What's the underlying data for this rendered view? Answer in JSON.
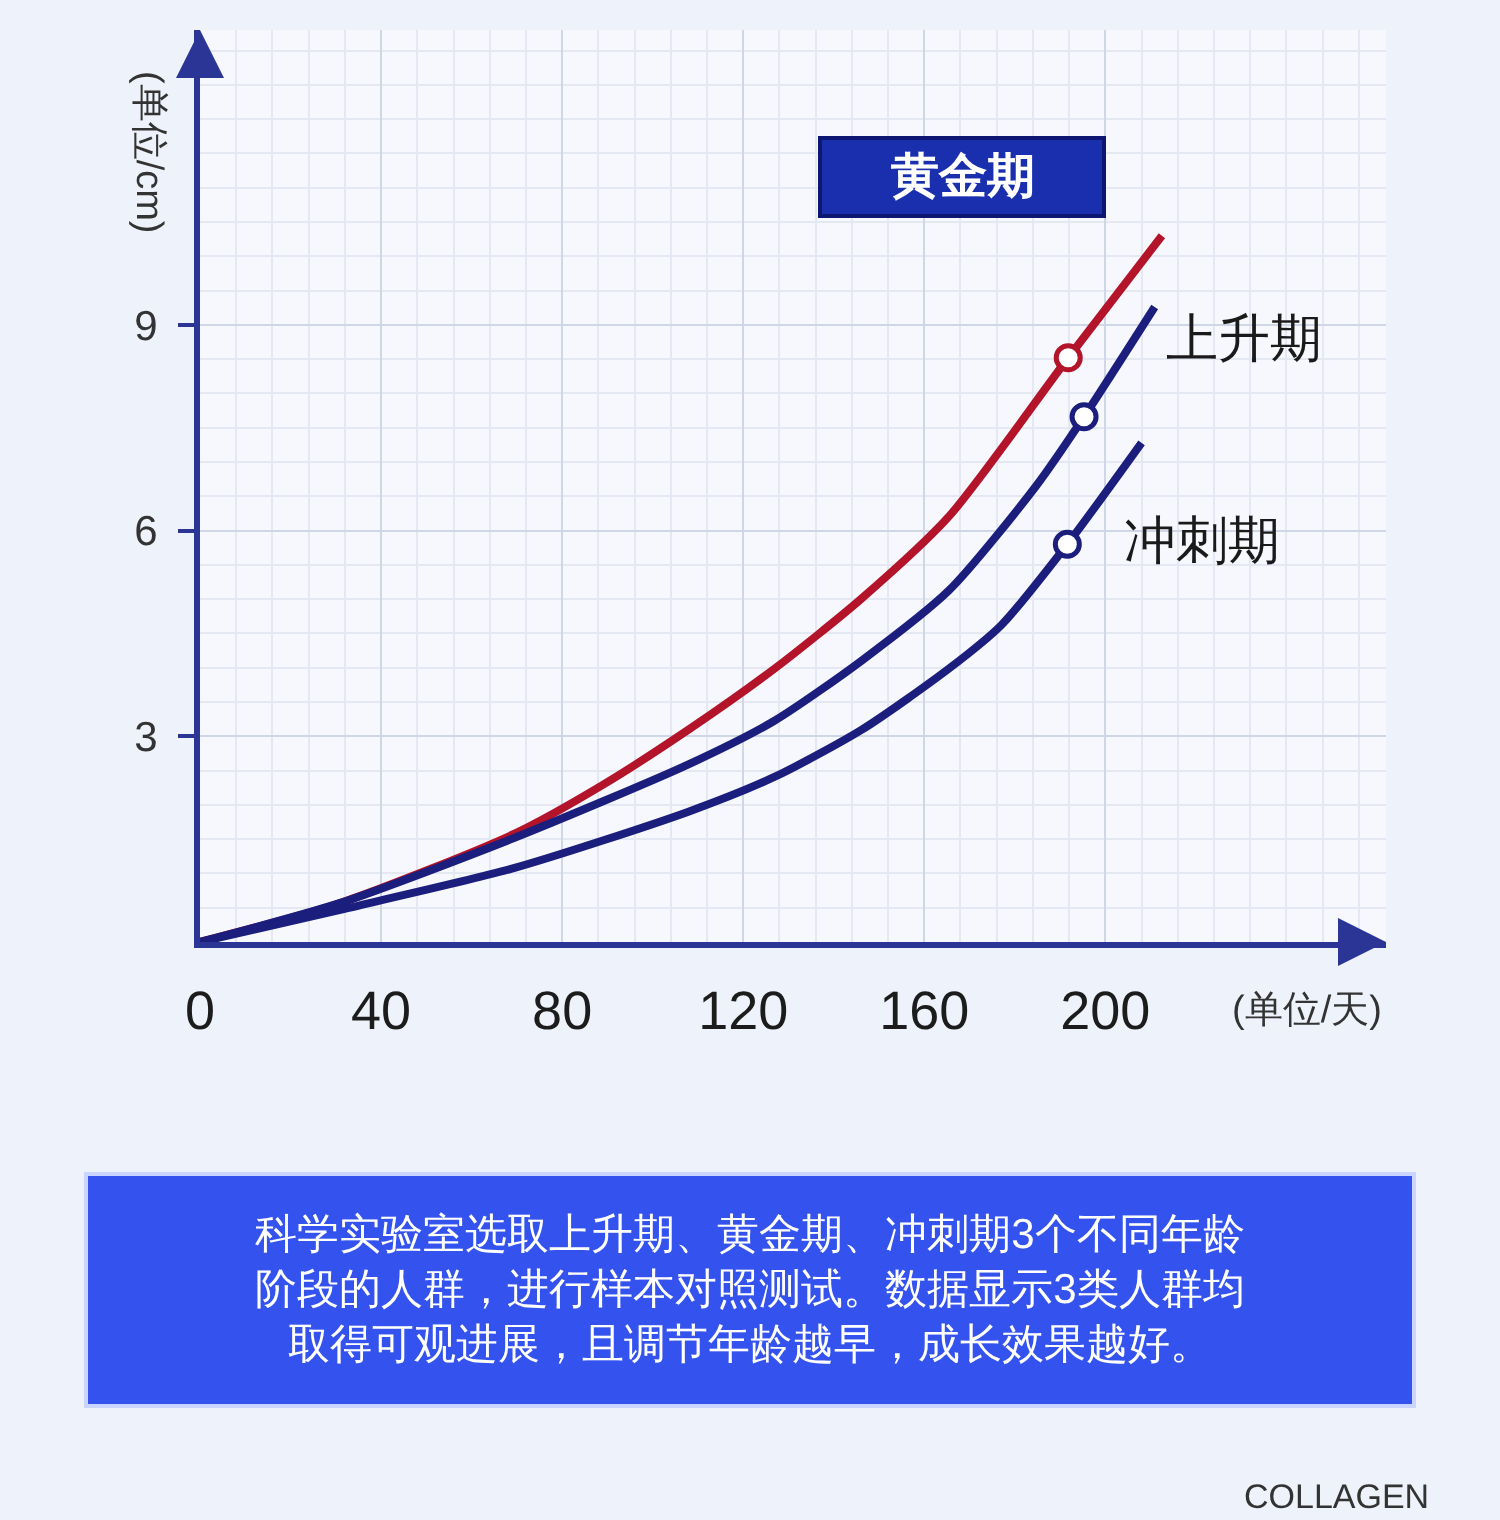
{
  "chart_data": {
    "type": "line",
    "xlabel": "(单位/天)",
    "ylabel": "(单位/cm)",
    "xlim": [
      0,
      262
    ],
    "ylim": [
      0,
      13.3
    ],
    "xticks": [
      0,
      40,
      80,
      120,
      160,
      200
    ],
    "yticks": [
      3,
      6,
      9
    ],
    "grid": true,
    "legend": false,
    "line_style": "solid",
    "series": [
      {
        "name": "黄金期",
        "color": "#b3142a",
        "x": [
          0,
          31,
          69.5,
          88.7,
          108,
          127,
          146,
          165.5,
          191.8,
          212.5
        ],
        "values": [
          0,
          0.57,
          1.58,
          2.28,
          3.1,
          3.99,
          5.0,
          6.21,
          8.52,
          10.3
        ]
      },
      {
        "name": "上升期",
        "color": "#1b1e7c",
        "x": [
          0,
          31,
          69.5,
          107.9,
          127,
          146.3,
          165.5,
          184.7,
          195.3,
          210.9
        ],
        "values": [
          0,
          0.57,
          1.52,
          2.59,
          3.23,
          4.11,
          5.13,
          6.65,
          7.66,
          9.26
        ]
      },
      {
        "name": "冲刺期",
        "color": "#1b1e7c",
        "x": [
          0,
          31,
          69.5,
          107.9,
          127,
          146.3,
          165.5,
          177,
          191.6,
          208
        ],
        "values": [
          0,
          0.47,
          1.08,
          1.9,
          2.41,
          3.1,
          3.99,
          4.62,
          5.8,
          7.28
        ]
      },
      {
        "type": "scatter",
        "marker": "circle",
        "x": [
          191.8,
          195.3,
          191.6
        ],
        "values": [
          8.52,
          7.66,
          5.8
        ],
        "colors": [
          "#b3142a",
          "#1b1e7c",
          "#1b1e7c"
        ]
      }
    ],
    "annotations": [
      "科学实验室选取上升期、黄金期、冲刺期3个不同年龄阶段的人群，进行样本对照测试。数据显示3类人群均取得可观进展，且调节年龄越早，成长效果越好。",
      "COLLAGEN"
    ]
  }
}
